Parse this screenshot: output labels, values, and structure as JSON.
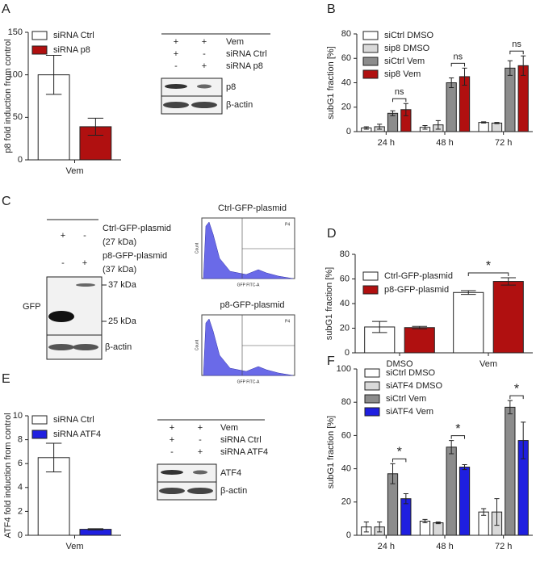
{
  "panel_labels": [
    "A",
    "B",
    "C",
    "D",
    "E",
    "F"
  ],
  "chart_data": [
    {
      "type": "bar",
      "ylabel": "p8 fold induction from control",
      "categories": [
        "Vem"
      ],
      "ylim": [
        0,
        150
      ],
      "yticks": [
        0,
        50,
        100,
        150
      ],
      "series": [
        {
          "name": "siRNA Ctrl",
          "color": "#ffffff",
          "values": [
            100
          ],
          "errors": [
            23
          ]
        },
        {
          "name": "siRNA p8",
          "color": "#b01010",
          "values": [
            39
          ],
          "errors": [
            10
          ]
        }
      ]
    },
    {
      "type": "bar",
      "ylabel": "subG1 fraction [%]",
      "categories": [
        "24 h",
        "48 h",
        "72 h"
      ],
      "ylim": [
        0,
        80
      ],
      "yticks": [
        0,
        20,
        40,
        60,
        80
      ],
      "series": [
        {
          "name": "siCtrl DMSO",
          "color": "#ffffff",
          "values": [
            3,
            3.5,
            7.5
          ],
          "errors": [
            1,
            1.5,
            0.5
          ]
        },
        {
          "name": "sip8  DMSO",
          "color": "#d9d9d9",
          "values": [
            4,
            5.5,
            7
          ],
          "errors": [
            2,
            3.5,
            0.5
          ]
        },
        {
          "name": "siCtrl Vem",
          "color": "#8c8c8c",
          "values": [
            15,
            40,
            52
          ],
          "errors": [
            2,
            4,
            6
          ]
        },
        {
          "name": "sip8 Vem",
          "color": "#b01010",
          "values": [
            18,
            45,
            54
          ],
          "errors": [
            5,
            7,
            8
          ]
        }
      ],
      "annotations": [
        "ns",
        "ns",
        "ns"
      ]
    },
    {
      "type": "bar",
      "ylabel": "subG1 fraction [%]",
      "categories": [
        "DMSO",
        "Vem"
      ],
      "ylim": [
        0,
        80
      ],
      "yticks": [
        0,
        20,
        40,
        60,
        80
      ],
      "series": [
        {
          "name": "Ctrl-GFP-plasmid",
          "color": "#ffffff",
          "values": [
            21,
            49
          ],
          "errors": [
            4.5,
            1.5
          ]
        },
        {
          "name": "p8-GFP-plasmid",
          "color": "#b01010",
          "values": [
            20.5,
            58
          ],
          "errors": [
            1,
            3
          ]
        }
      ],
      "annotations": [
        "*"
      ]
    },
    {
      "type": "bar",
      "ylabel": "ATF4 fold induction from control",
      "categories": [
        "Vem"
      ],
      "ylim": [
        0,
        10
      ],
      "yticks": [
        0,
        2,
        4,
        6,
        8,
        10
      ],
      "series": [
        {
          "name": "siRNA Ctrl",
          "color": "#ffffff",
          "values": [
            6.5
          ],
          "errors": [
            1.2
          ]
        },
        {
          "name": "siRNA ATF4",
          "color": "#1f1fe0",
          "values": [
            0.5
          ],
          "errors": [
            0.05
          ]
        }
      ]
    },
    {
      "type": "bar",
      "ylabel": "subG1 fraction [%]",
      "categories": [
        "24 h",
        "48 h",
        "72 h"
      ],
      "ylim": [
        0,
        100
      ],
      "yticks": [
        0,
        20,
        40,
        60,
        80,
        100
      ],
      "series": [
        {
          "name": "siCtrl DMSO",
          "color": "#ffffff",
          "values": [
            5,
            8.5,
            14
          ],
          "errors": [
            3,
            1,
            2
          ]
        },
        {
          "name": "siATF4 DMSO",
          "color": "#d9d9d9",
          "values": [
            5,
            7.5,
            14
          ],
          "errors": [
            3,
            0.5,
            8
          ]
        },
        {
          "name": "siCtrl Vem",
          "color": "#8c8c8c",
          "values": [
            37,
            53,
            77
          ],
          "errors": [
            6,
            4,
            4
          ]
        },
        {
          "name": "siATF4 Vem",
          "color": "#1f1fe0",
          "values": [
            22,
            41,
            57
          ],
          "errors": [
            3,
            1.5,
            11
          ]
        }
      ],
      "annotations": [
        "*",
        "*",
        "*"
      ]
    }
  ],
  "blots": {
    "A": {
      "rows": [
        {
          "label": "Vem",
          "signs": [
            "+",
            "+"
          ]
        },
        {
          "label": "siRNA Ctrl",
          "signs": [
            "+",
            "-"
          ]
        },
        {
          "label": "siRNA p8",
          "signs": [
            "-",
            "+"
          ]
        }
      ],
      "bands": [
        "p8",
        "β-actin"
      ]
    },
    "C": {
      "rows": [
        {
          "label": "Ctrl-GFP-plasmid",
          "sub": "(27 kDa)",
          "signs": [
            "+",
            "-"
          ]
        },
        {
          "label": "p8-GFP-plasmid",
          "sub": "(37 kDa)",
          "signs": [
            "-",
            "+"
          ]
        }
      ],
      "protein": "GFP",
      "markers": [
        "37 kDa",
        "25 kDa"
      ],
      "loading": "β-actin"
    },
    "E": {
      "rows": [
        {
          "label": "Vem",
          "signs": [
            "+",
            "+"
          ]
        },
        {
          "label": "siRNA Ctrl",
          "signs": [
            "+",
            "-"
          ]
        },
        {
          "label": "siRNA ATF4",
          "signs": [
            "-",
            "+"
          ]
        }
      ],
      "bands": [
        "ATF4",
        "β-actin"
      ]
    }
  },
  "flow": [
    {
      "title": "Ctrl-GFP-plasmid",
      "gate": "P4",
      "xlabel": "GFP FITC-A",
      "ylabel": "Count"
    },
    {
      "title": "p8-GFP-plasmid",
      "gate": "P4",
      "xlabel": "GFP FITC-A",
      "ylabel": "Count"
    }
  ]
}
